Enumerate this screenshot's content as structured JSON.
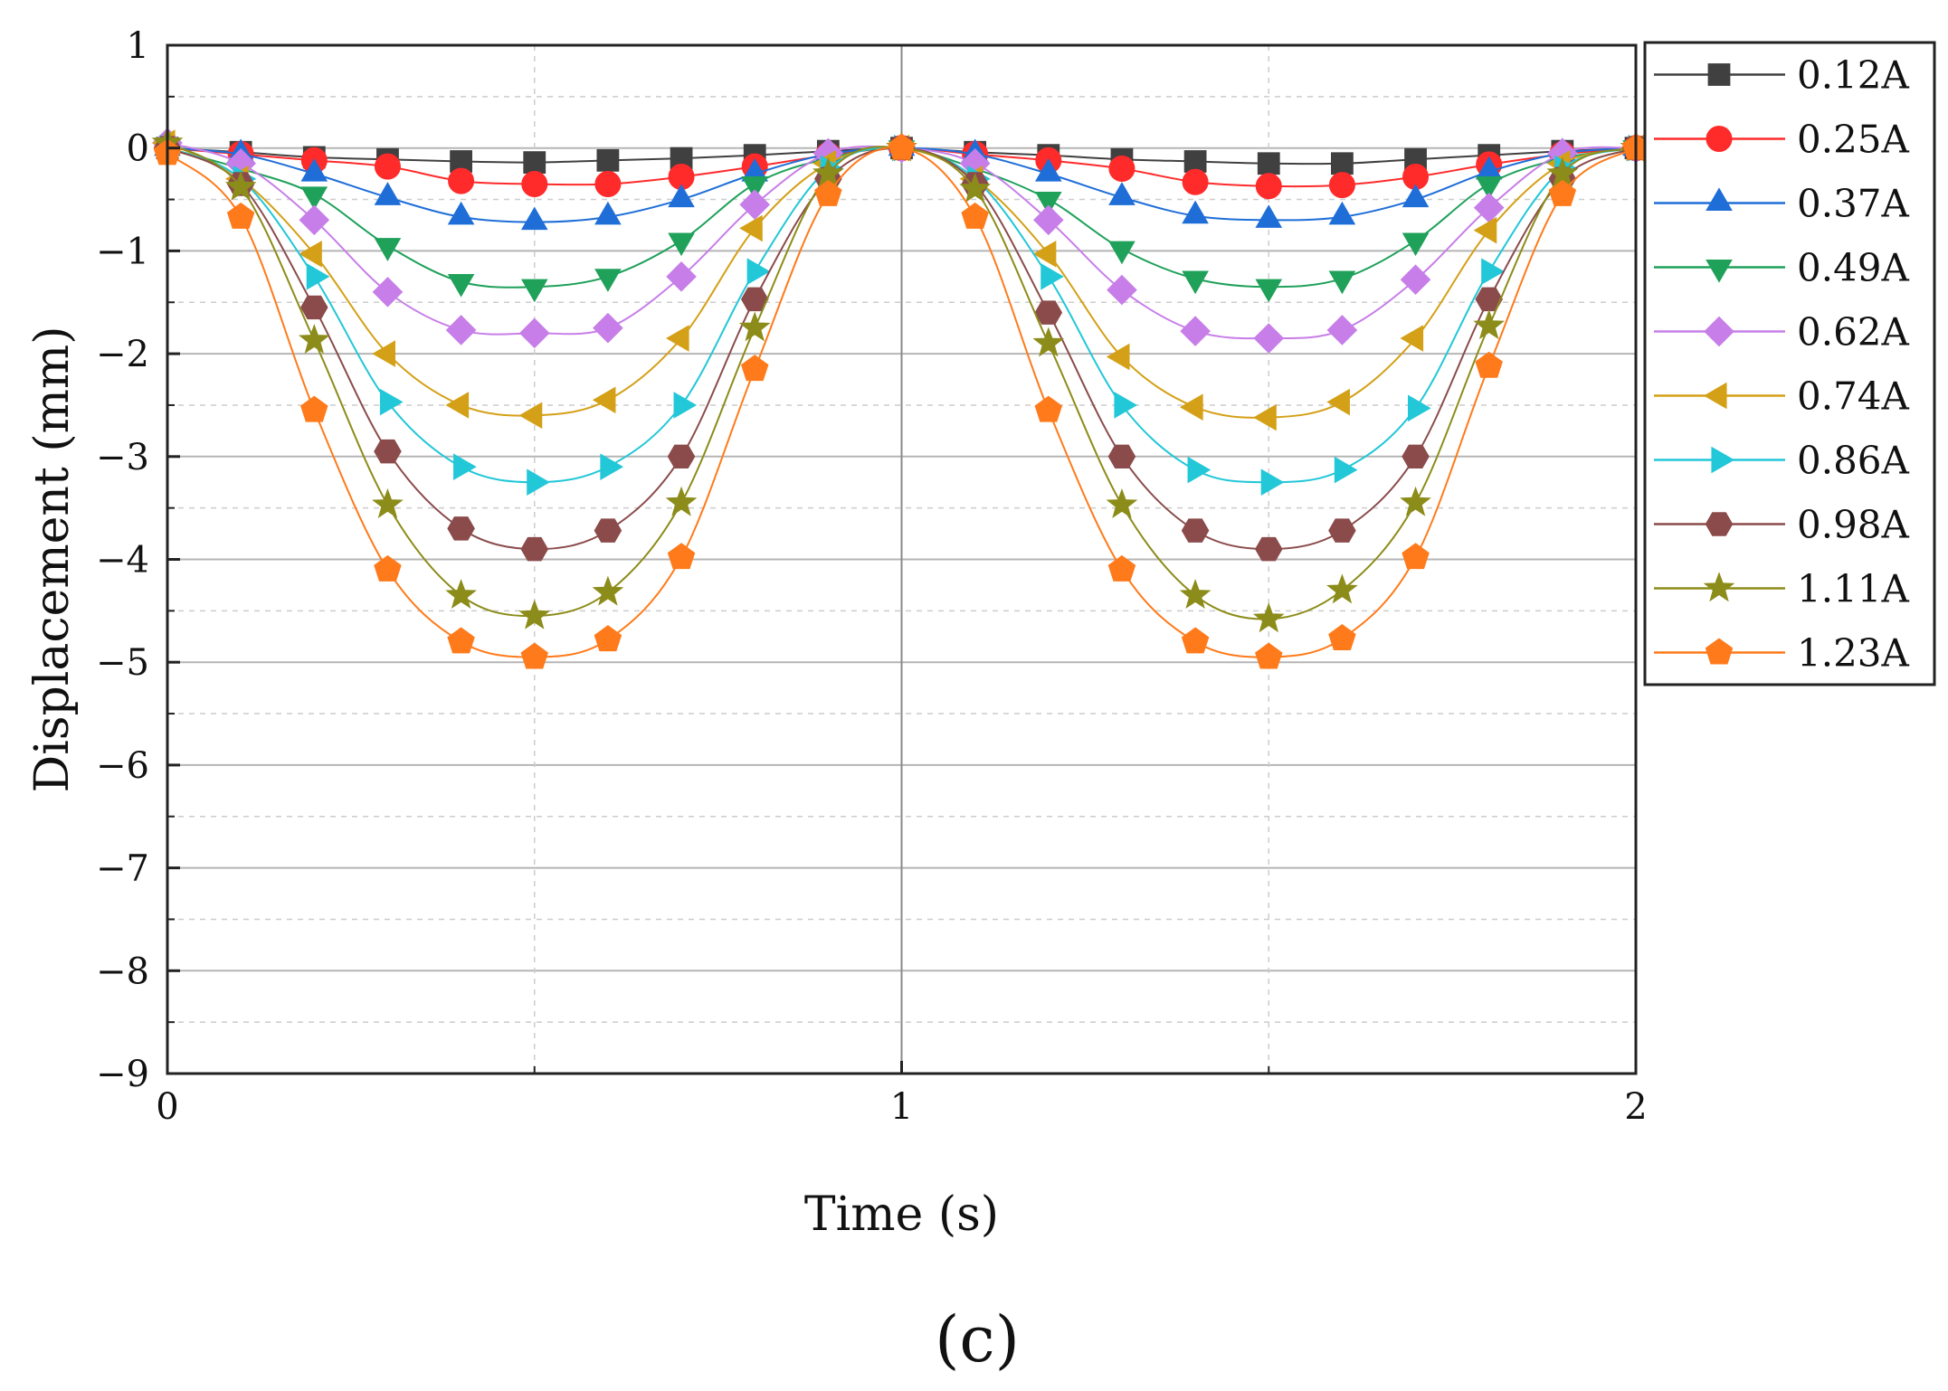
{
  "chart_data": {
    "type": "line",
    "title": "",
    "xlabel": "Time (s)",
    "ylabel": "Displacement (mm)",
    "caption": "(c)",
    "xlim": [
      0,
      2
    ],
    "ylim": [
      -9,
      1
    ],
    "xticks": [
      0,
      1,
      2
    ],
    "xtick_labels": [
      "0",
      "1",
      "2"
    ],
    "yticks": [
      1,
      0,
      -1,
      -2,
      -3,
      -4,
      -5,
      -6,
      -7,
      -8,
      -9
    ],
    "ytick_labels": [
      "1",
      "0",
      "−1",
      "−2",
      "−3",
      "−4",
      "−5",
      "−6",
      "−7",
      "−8",
      "−9"
    ],
    "grid": true,
    "legend_position": "right",
    "x": [
      0,
      0.1,
      0.2,
      0.3,
      0.4,
      0.5,
      0.6,
      0.7,
      0.8,
      0.9,
      1.0,
      1.1,
      1.2,
      1.3,
      1.4,
      1.5,
      1.6,
      1.7,
      1.8,
      1.9,
      2.0
    ],
    "series": [
      {
        "name": "0.12A",
        "color": "#404040",
        "marker": "square",
        "values": [
          0,
          -0.04,
          -0.09,
          -0.11,
          -0.13,
          -0.14,
          -0.12,
          -0.1,
          -0.07,
          -0.03,
          0,
          -0.04,
          -0.07,
          -0.11,
          -0.13,
          -0.15,
          -0.15,
          -0.11,
          -0.07,
          -0.03,
          0
        ]
      },
      {
        "name": "0.25A",
        "color": "#ff2a2a",
        "marker": "circle",
        "values": [
          0,
          -0.06,
          -0.12,
          -0.18,
          -0.32,
          -0.35,
          -0.35,
          -0.28,
          -0.18,
          -0.07,
          0,
          -0.06,
          -0.12,
          -0.2,
          -0.33,
          -0.37,
          -0.36,
          -0.28,
          -0.16,
          -0.06,
          0
        ]
      },
      {
        "name": "0.37A",
        "color": "#1f6ed8",
        "marker": "triangle-up",
        "values": [
          0,
          -0.06,
          -0.25,
          -0.48,
          -0.67,
          -0.72,
          -0.67,
          -0.5,
          -0.25,
          -0.06,
          0,
          -0.06,
          -0.25,
          -0.48,
          -0.66,
          -0.7,
          -0.67,
          -0.5,
          -0.23,
          -0.05,
          0
        ]
      },
      {
        "name": "0.49A",
        "color": "#1fa15a",
        "marker": "triangle-down",
        "values": [
          0,
          -0.2,
          -0.45,
          -0.95,
          -1.3,
          -1.35,
          -1.25,
          -0.9,
          -0.35,
          -0.1,
          0,
          -0.2,
          -0.5,
          -0.98,
          -1.27,
          -1.35,
          -1.27,
          -0.9,
          -0.35,
          -0.1,
          0
        ]
      },
      {
        "name": "0.62A",
        "color": "#c77ee8",
        "marker": "diamond",
        "values": [
          0.05,
          -0.15,
          -0.7,
          -1.4,
          -1.77,
          -1.8,
          -1.75,
          -1.25,
          -0.55,
          -0.05,
          0,
          -0.15,
          -0.7,
          -1.38,
          -1.78,
          -1.85,
          -1.77,
          -1.28,
          -0.58,
          -0.05,
          0
        ]
      },
      {
        "name": "0.74A",
        "color": "#d4a017",
        "marker": "triangle-left",
        "values": [
          0.05,
          -0.3,
          -1.03,
          -2.0,
          -2.5,
          -2.6,
          -2.45,
          -1.85,
          -0.78,
          -0.15,
          0,
          -0.3,
          -1.03,
          -2.03,
          -2.52,
          -2.62,
          -2.47,
          -1.85,
          -0.8,
          -0.15,
          0
        ]
      },
      {
        "name": "0.86A",
        "color": "#22c7d8",
        "marker": "triangle-right",
        "values": [
          0,
          -0.3,
          -1.25,
          -2.47,
          -3.1,
          -3.25,
          -3.1,
          -2.5,
          -1.2,
          -0.2,
          0,
          -0.3,
          -1.25,
          -2.5,
          -3.13,
          -3.25,
          -3.13,
          -2.53,
          -1.2,
          -0.2,
          0
        ]
      },
      {
        "name": "0.98A",
        "color": "#8b4b4b",
        "marker": "hexagon",
        "values": [
          0,
          -0.35,
          -1.55,
          -2.95,
          -3.7,
          -3.9,
          -3.72,
          -3.0,
          -1.47,
          -0.3,
          0,
          -0.35,
          -1.6,
          -3.0,
          -3.72,
          -3.9,
          -3.72,
          -3.0,
          -1.47,
          -0.3,
          0
        ]
      },
      {
        "name": "1.11A",
        "color": "#8c8c1a",
        "marker": "star",
        "values": [
          0.05,
          -0.38,
          -1.87,
          -3.47,
          -4.35,
          -4.55,
          -4.32,
          -3.45,
          -1.75,
          -0.25,
          0,
          -0.4,
          -1.9,
          -3.47,
          -4.35,
          -4.58,
          -4.3,
          -3.45,
          -1.73,
          -0.25,
          0
        ]
      },
      {
        "name": "1.23A",
        "color": "#ff7a1a",
        "marker": "pentagon",
        "values": [
          -0.05,
          -0.67,
          -2.55,
          -4.1,
          -4.8,
          -4.95,
          -4.78,
          -3.98,
          -2.15,
          -0.45,
          0,
          -0.67,
          -2.55,
          -4.1,
          -4.8,
          -4.95,
          -4.77,
          -3.98,
          -2.12,
          -0.45,
          0
        ]
      }
    ]
  }
}
